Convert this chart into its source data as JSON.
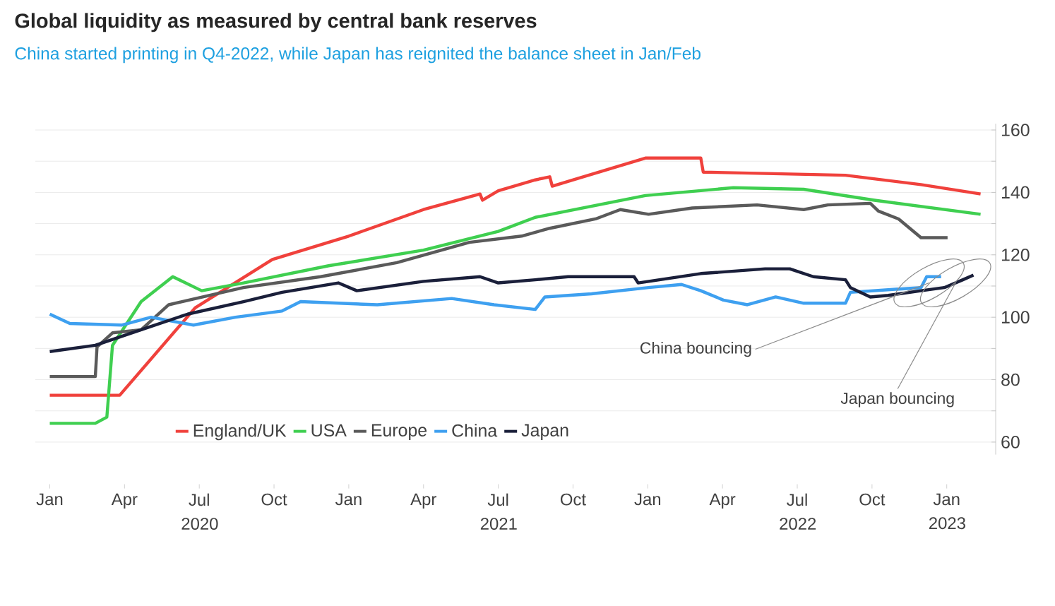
{
  "chart_data": {
    "type": "line",
    "title": "Global liquidity as measured by central bank reserves",
    "subtitle": "China started printing in Q4-2022, while Japan has reignited the balance sheet in Jan/Feb",
    "xlim": [
      "2019-12-14",
      "2023-02-28"
    ],
    "ylim": [
      56,
      162
    ],
    "xticks": [
      {
        "value": "2020-01-01",
        "label": "Jan"
      },
      {
        "value": "2020-04-01",
        "label": "Apr"
      },
      {
        "value": "2020-07-01",
        "label": "Jul 2020"
      },
      {
        "value": "2020-10-01",
        "label": "Oct"
      },
      {
        "value": "2021-01-01",
        "label": "Jan"
      },
      {
        "value": "2021-04-01",
        "label": "Apr"
      },
      {
        "value": "2021-07-01",
        "label": "Jul 2021"
      },
      {
        "value": "2021-10-01",
        "label": "Oct"
      },
      {
        "value": "2022-01-01",
        "label": "Jan"
      },
      {
        "value": "2022-04-01",
        "label": "Apr"
      },
      {
        "value": "2022-07-01",
        "label": "Jul 2022"
      },
      {
        "value": "2022-10-01",
        "label": "Oct"
      },
      {
        "value": "2023-01-01",
        "label": "Jan 2023"
      }
    ],
    "yticks": [
      60,
      {
        "value": 70,
        "label": null
      },
      80,
      {
        "value": 90,
        "label": null
      },
      100,
      {
        "value": 110,
        "label": null
      },
      120,
      {
        "value": 130,
        "label": null
      },
      140,
      {
        "value": 150,
        "label": null
      },
      160
    ],
    "grid": "y",
    "legend": "bottom left",
    "series": [
      {
        "name": "England/UK",
        "color": "#f0413c",
        "x": [
          "2020-01-01",
          "2020-03-26",
          "2020-06-26",
          "2020-09-29",
          "2021-01-01",
          "2021-04-01",
          "2021-06-09",
          "2021-06-12",
          "2021-07-01",
          "2021-08-16",
          "2021-09-03",
          "2021-09-06",
          "2021-12-29",
          "2022-03-05",
          "2022-03-08",
          "2022-08-30",
          "2022-11-30",
          "2023-02-11"
        ],
        "values": [
          75,
          75,
          103,
          118.5,
          126,
          134.5,
          139.5,
          137.5,
          140.5,
          144,
          145,
          142,
          151,
          151,
          146.5,
          145.5,
          142.5,
          139.5
        ]
      },
      {
        "name": "USA",
        "color": "#3fcf50",
        "x": [
          "2020-01-01",
          "2020-02-25",
          "2020-03-10",
          "2020-03-17",
          "2020-04-21",
          "2020-05-30",
          "2020-07-04",
          "2020-08-25",
          "2020-12-07",
          "2021-04-01",
          "2021-07-01",
          "2021-08-16",
          "2021-12-29",
          "2022-04-14",
          "2022-07-09",
          "2022-10-04",
          "2023-02-11"
        ],
        "values": [
          66,
          66,
          68,
          91,
          105,
          113,
          108.5,
          111,
          116.5,
          121.5,
          127.5,
          132,
          139,
          141.5,
          141,
          137.5,
          133
        ]
      },
      {
        "name": "Europe",
        "color": "#5a5a5a",
        "x": [
          "2020-01-01",
          "2020-02-25",
          "2020-02-27",
          "2020-03-17",
          "2020-04-21",
          "2020-05-25",
          "2020-08-25",
          "2020-11-27",
          "2021-02-27",
          "2021-05-27",
          "2021-07-30",
          "2021-09-03",
          "2021-10-29",
          "2021-11-28",
          "2022-01-02",
          "2022-02-23",
          "2022-05-13",
          "2022-07-09",
          "2022-08-08",
          "2022-09-29",
          "2022-10-09",
          "2022-11-03",
          "2022-11-30",
          "2023-01-02"
        ],
        "values": [
          81,
          81,
          90.5,
          95,
          96,
          104,
          109.5,
          113,
          117.5,
          124,
          126,
          128.5,
          131.5,
          134.5,
          133,
          135,
          136,
          134.5,
          136,
          136.5,
          134,
          131.5,
          125.5,
          125.5
        ]
      },
      {
        "name": "China",
        "color": "#3ea0f0",
        "x": [
          "2020-01-01",
          "2020-01-26",
          "2020-03-29",
          "2020-05-03",
          "2020-06-24",
          "2020-08-15",
          "2020-10-11",
          "2020-11-03",
          "2021-02-05",
          "2021-05-05",
          "2021-06-26",
          "2021-08-16",
          "2021-08-28",
          "2021-10-24",
          "2022-01-02",
          "2022-02-11",
          "2022-03-05",
          "2022-04-02",
          "2022-05-01",
          "2022-06-05",
          "2022-07-09",
          "2022-08-30",
          "2022-09-05",
          "2022-11-30",
          "2022-12-07",
          "2022-12-25"
        ],
        "values": [
          101,
          98,
          97.5,
          100,
          97.5,
          100,
          102,
          105,
          104,
          106,
          104,
          102.5,
          106.5,
          107.5,
          109.5,
          110.5,
          108.5,
          105.5,
          104,
          106.5,
          104.5,
          104.5,
          108,
          109.5,
          113,
          113
        ]
      },
      {
        "name": "Japan",
        "color": "#1a1f3a",
        "x": [
          "2020-01-01",
          "2020-02-25",
          "2020-04-21",
          "2020-06-17",
          "2020-08-25",
          "2020-10-11",
          "2020-12-19",
          "2021-01-11",
          "2021-04-01",
          "2021-06-09",
          "2021-07-01",
          "2021-08-16",
          "2021-09-25",
          "2021-12-15",
          "2021-12-20",
          "2022-03-05",
          "2022-05-23",
          "2022-06-22",
          "2022-07-21",
          "2022-08-30",
          "2022-09-05",
          "2022-09-29",
          "2022-10-21",
          "2022-11-30",
          "2022-12-29",
          "2023-01-21",
          "2023-02-03"
        ],
        "values": [
          89,
          91,
          96,
          101,
          105,
          108,
          111,
          108.5,
          111.5,
          113,
          111,
          112,
          113,
          113,
          111,
          114,
          115.5,
          115.5,
          113,
          112,
          109.5,
          106.5,
          107,
          108.5,
          109.5,
          112,
          113.5
        ]
      }
    ],
    "annotations": [
      {
        "text": "China bouncing",
        "x": "2022-12-10",
        "y": 111
      },
      {
        "text": "Japan bouncing",
        "x": "2023-01-12",
        "y": 111
      }
    ]
  }
}
